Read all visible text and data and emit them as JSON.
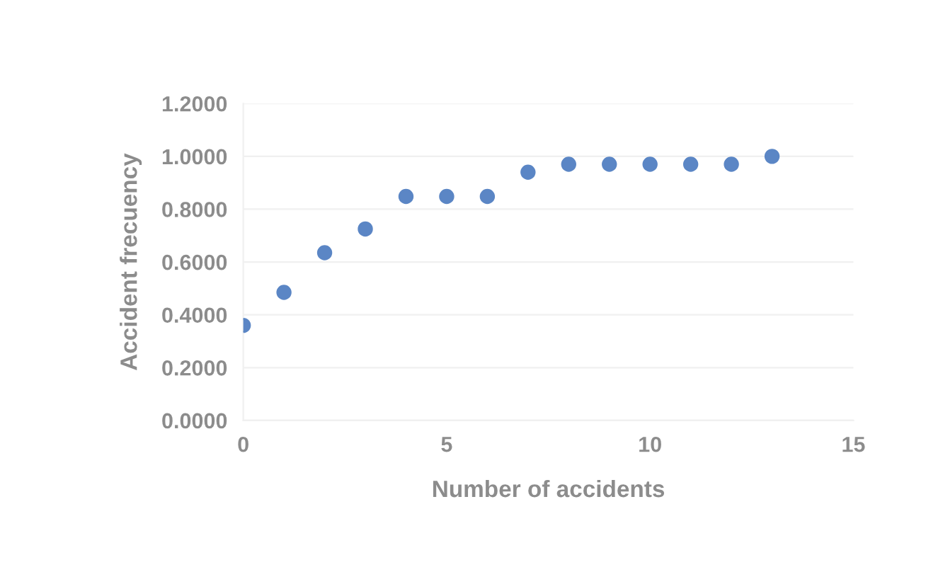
{
  "chart_data": {
    "type": "scatter",
    "xlabel": "Number of accidents",
    "ylabel": "Accident frecuency",
    "x": [
      0,
      1,
      2,
      3,
      4,
      5,
      6,
      7,
      8,
      9,
      10,
      11,
      12,
      13
    ],
    "series": [
      {
        "color": "#5b86c5",
        "values": [
          0.36,
          0.485,
          0.635,
          0.725,
          0.848,
          0.848,
          0.848,
          0.94,
          0.97,
          0.97,
          0.97,
          0.97,
          0.97,
          1.0
        ]
      }
    ],
    "xlim": [
      0,
      15
    ],
    "xticks": [
      0,
      5,
      10,
      15
    ],
    "ylim": [
      0,
      1.2
    ],
    "yticks": [
      {
        "value": 0,
        "label": "0.0000"
      },
      {
        "value": 0.2,
        "label": "0.2000"
      },
      {
        "value": 0.4,
        "label": "0.4000"
      },
      {
        "value": 0.6,
        "label": "0.6000"
      },
      {
        "value": 0.8,
        "label": "0.8000"
      },
      {
        "value": 1.0,
        "label": "1.0000"
      },
      {
        "value": 1.2,
        "label": "1.2000"
      }
    ],
    "grid": "y",
    "marker": "circle"
  }
}
